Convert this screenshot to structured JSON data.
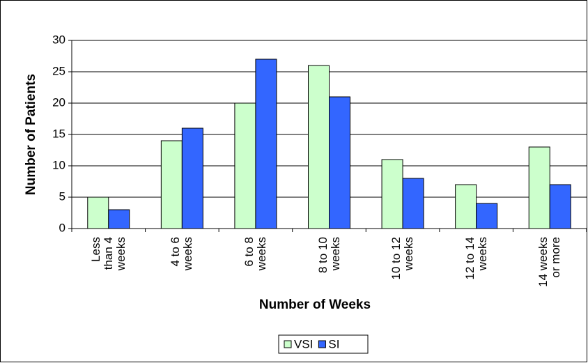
{
  "chart_data": {
    "type": "bar",
    "x_label": "Number of Weeks",
    "y_label": "Number of Patients",
    "categories": [
      "Less\nthan 4\nweeks",
      "4 to 6\nweeks",
      "6 to 8\nweeks",
      "8 to 10\nweeks",
      "10 to 12\nweeks",
      "12 to 14\nweeks",
      "14 weeks\nor more"
    ],
    "series": [
      {
        "name": "VSI",
        "color": "#ccffcc",
        "values": [
          5,
          14,
          20,
          26,
          11,
          7,
          13
        ]
      },
      {
        "name": "SI",
        "color": "#3366ff",
        "values": [
          3,
          16,
          27,
          21,
          8,
          4,
          7
        ]
      }
    ],
    "ylim": [
      0,
      30
    ],
    "yticks": [
      0,
      5,
      10,
      15,
      20,
      25,
      30
    ],
    "grid": true,
    "legend": "bottom"
  }
}
